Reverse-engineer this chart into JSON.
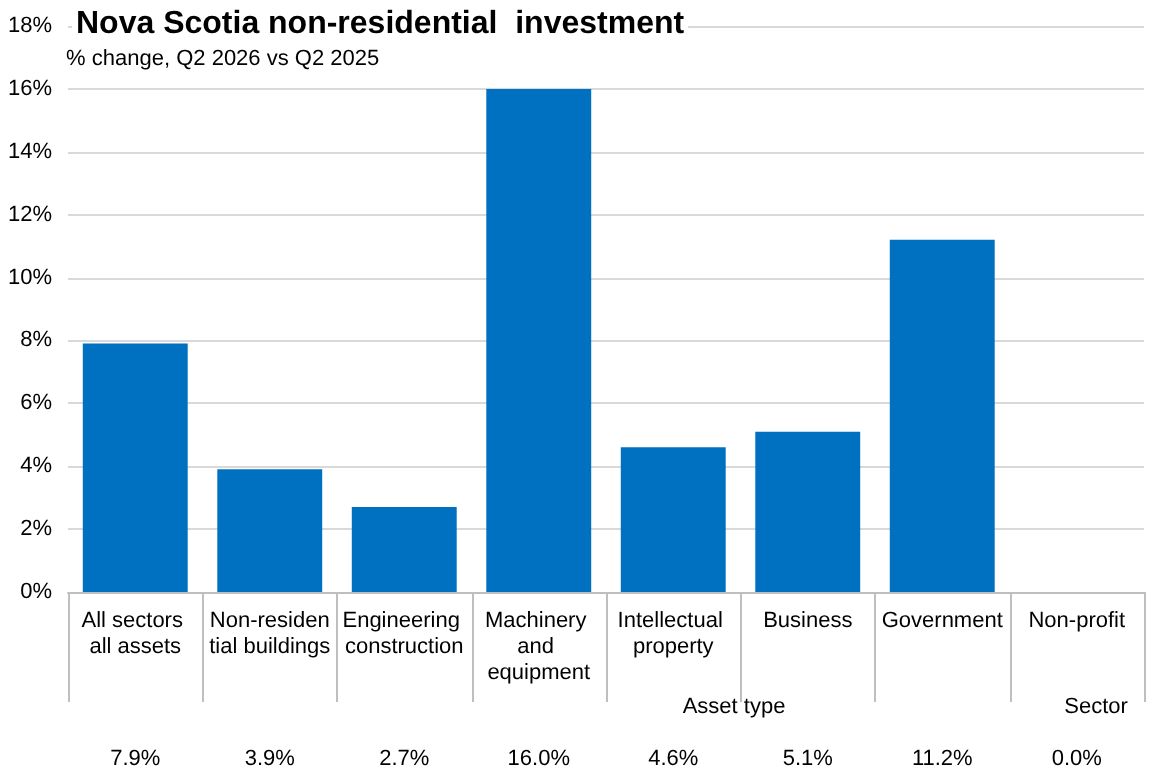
{
  "chart_data": {
    "type": "bar",
    "title": "Nova Scotia non-residential  investment",
    "subtitle": " % change, Q2 2026 vs Q2 2025",
    "categories": [
      "All sectors all assets",
      "Non-residential buildings",
      "Engineering construction",
      "Machinery and equipment",
      "Intellectual property",
      "Business",
      "Government",
      "Non-profit"
    ],
    "values": [
      7.9,
      3.9,
      2.7,
      16.0,
      4.6,
      5.1,
      11.2,
      0.0
    ],
    "value_labels": [
      "7.9%",
      "3.9%",
      "2.7%",
      "16.0%",
      "4.6%",
      "5.1%",
      "11.2%",
      "0.0%"
    ],
    "color": "#0070c0",
    "ylim": [
      0,
      18
    ],
    "yticks": [
      {
        "value": 0,
        "label": "0%"
      },
      {
        "value": 2,
        "label": "2%"
      },
      {
        "value": 4,
        "label": "4%"
      },
      {
        "value": 6,
        "label": "6%"
      },
      {
        "value": 8,
        "label": "8%"
      },
      {
        "value": 10,
        "label": "10%"
      },
      {
        "value": 12,
        "label": "12%"
      },
      {
        "value": 14,
        "label": "14%"
      },
      {
        "value": 16,
        "label": "16%"
      },
      {
        "value": 18,
        "label": "18%"
      }
    ],
    "annotations": [
      "Asset type",
      "Sector"
    ],
    "grid": "y"
  }
}
